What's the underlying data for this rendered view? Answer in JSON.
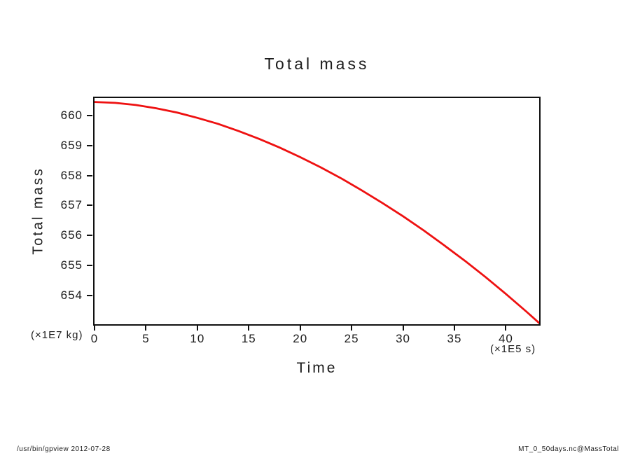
{
  "chart_data": {
    "type": "line",
    "title": "Total mass",
    "xlabel": "Time",
    "ylabel": "Total mass",
    "x_unit": "(×1E5 s)",
    "y_unit": "(×1E7 kg)",
    "xlim": [
      0,
      43.24
    ],
    "ylim": [
      653.04,
      660.58
    ],
    "x_ticks": [
      0,
      5,
      10,
      15,
      20,
      25,
      30,
      35,
      40
    ],
    "y_ticks": [
      654,
      655,
      656,
      657,
      658,
      659,
      660
    ],
    "grid": false,
    "legend": "none",
    "line_color": "#ee1111",
    "series": [
      {
        "name": "MassTotal",
        "points": [
          [
            0,
            660.45
          ],
          [
            2,
            660.42
          ],
          [
            4,
            660.35
          ],
          [
            6,
            660.24
          ],
          [
            8,
            660.1
          ],
          [
            10,
            659.92
          ],
          [
            12,
            659.72
          ],
          [
            14,
            659.48
          ],
          [
            16,
            659.22
          ],
          [
            18,
            658.93
          ],
          [
            20,
            658.61
          ],
          [
            22,
            658.27
          ],
          [
            24,
            657.9
          ],
          [
            26,
            657.5
          ],
          [
            28,
            657.08
          ],
          [
            30,
            656.64
          ],
          [
            32,
            656.17
          ],
          [
            34,
            655.67
          ],
          [
            36,
            655.16
          ],
          [
            38,
            654.62
          ],
          [
            40,
            654.05
          ],
          [
            42,
            653.46
          ],
          [
            43.24,
            653.08
          ]
        ]
      }
    ]
  },
  "footer": {
    "left": "/usr/bin/gpview  2012-07-28",
    "right": "MT_0_50days.nc@MassTotal"
  }
}
